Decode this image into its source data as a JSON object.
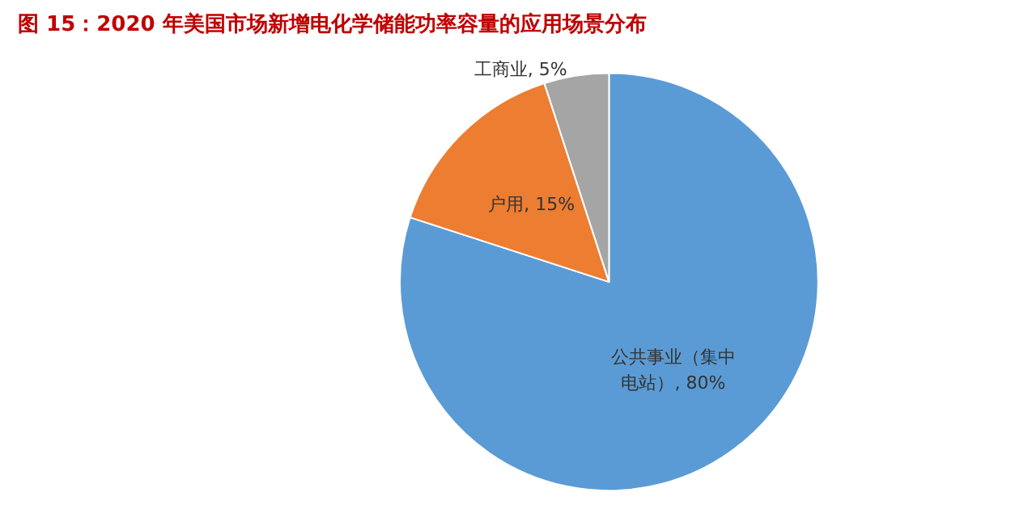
{
  "chart_data": {
    "type": "pie",
    "title": "图 15：2020 年美国市场新增电化学储能功率容量的应用场景分布",
    "categories": [
      "公共事业（集中电站）",
      "户用",
      "工商业"
    ],
    "values": [
      80,
      15,
      5
    ],
    "colors": [
      "#5b9bd5",
      "#ed7d31",
      "#a5a5a5"
    ],
    "value_labels": [
      "80%",
      "15%",
      "5%"
    ],
    "legend": false
  }
}
